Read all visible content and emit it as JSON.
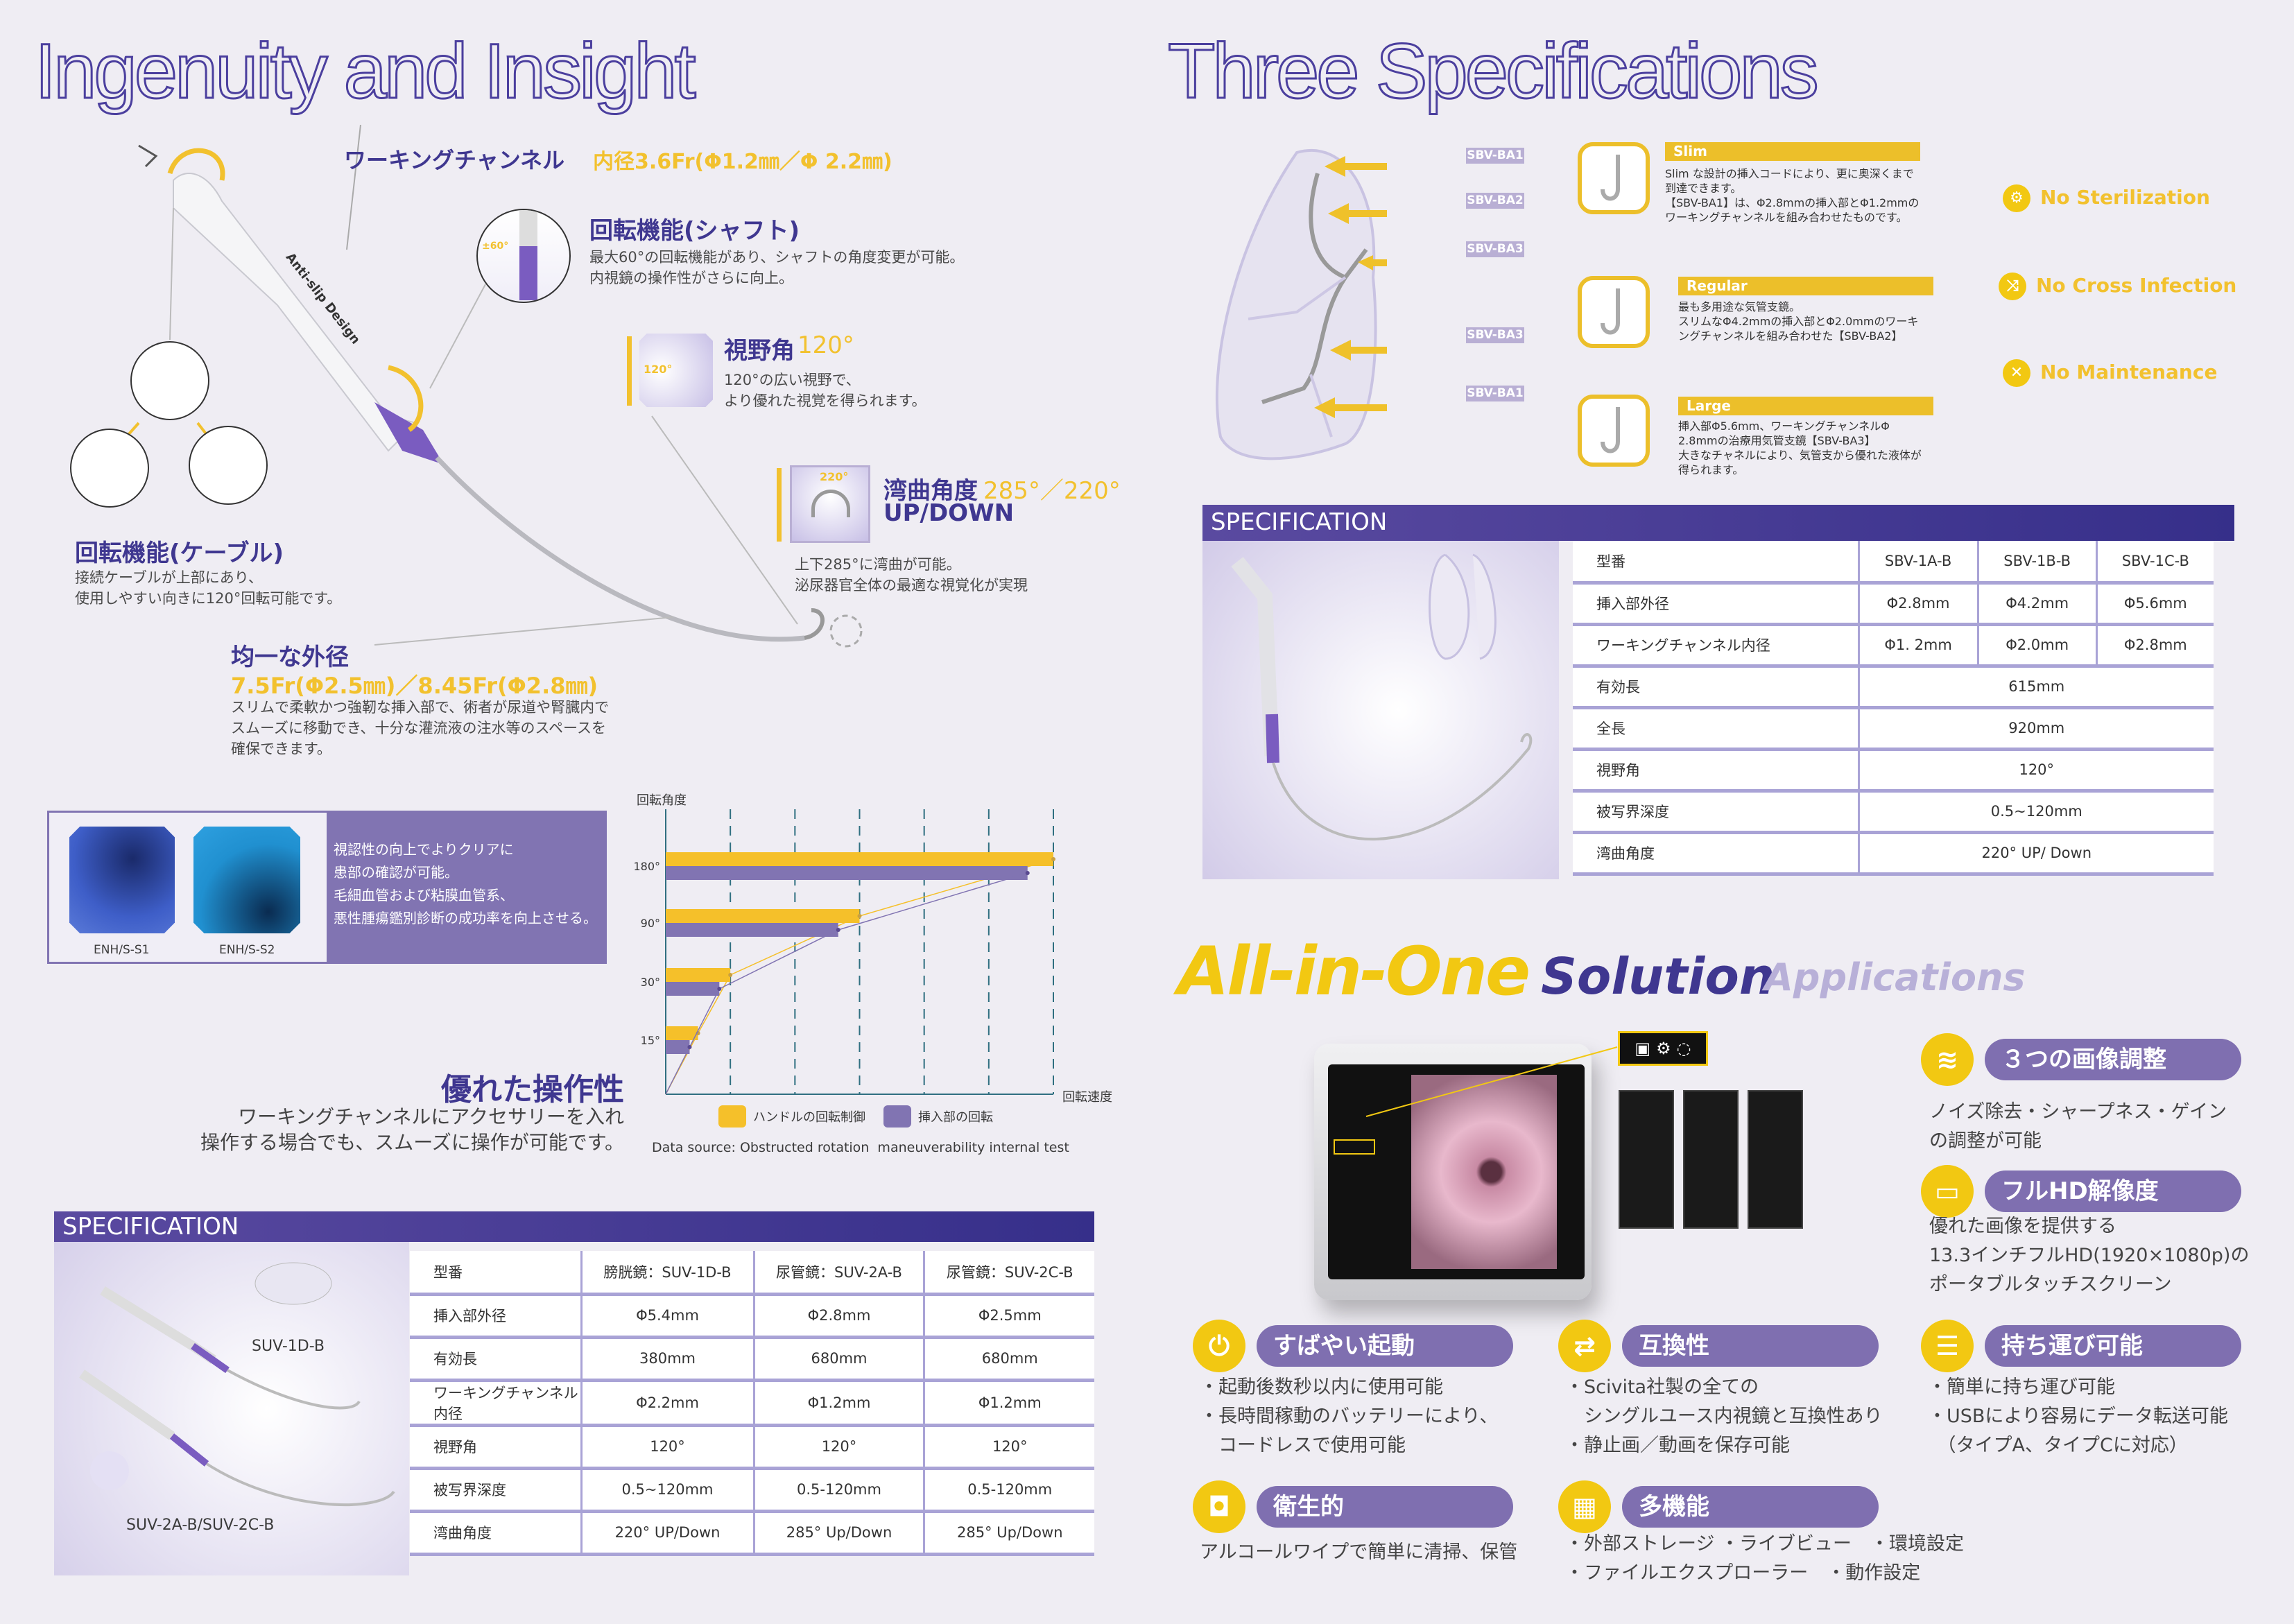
{
  "left": {
    "title": "Ingenuity and Insight",
    "working_channel": {
      "label": "ワーキングチャンネル",
      "value": "内径3.6Fr(Φ1.2㎜／Φ 2.2㎜)"
    },
    "shaft_rotation": {
      "title": "回転機能(シャフト)",
      "badge": "±60°",
      "lines": [
        "最大60°の回転機能があり、シャフトの角度変更が可能。",
        "内視鏡の操作性がさらに向上。"
      ]
    },
    "view_angle": {
      "title": "視野角",
      "value": "120°",
      "badge": "120°",
      "lines": [
        "120°の広い視野で、",
        "より優れた視覚を得られます。"
      ]
    },
    "bending": {
      "title": "湾曲角度",
      "value": "285°／220°",
      "sub": "UP/DOWN",
      "badge": "220°",
      "lines": [
        "上下285°に湾曲が可能。",
        "泌尿器官全体の最適な視覚化が実現"
      ]
    },
    "anti_slip": "Anti-slip Design",
    "cable_rotation": {
      "title": "回転機能(ケーブル)",
      "lines": [
        "接続ケーブルが上部にあり、",
        "使用しやすい向きに120°回転可能です。"
      ]
    },
    "outer_diameter": {
      "title": "均一な外径",
      "value": "7.5Fr(Φ2.5㎜)／8.45Fr(Φ2.8㎜)",
      "lines": [
        "スリムで柔軟かつ強靭な挿入部で、術者が尿道や腎臓内で",
        "スムーズに移動でき、十分な灌流液の注水等のスペースを",
        "確保できます。"
      ]
    },
    "enh": {
      "images": [
        "ENH/S-S1",
        "ENH/S-S2"
      ],
      "lines": [
        "視認性の向上でよりクリアに",
        "患部の確認が可能。",
        "毛細血管および粘膜血管系、",
        "悪性腫瘍鑑別診断の成功率を向上させる。"
      ]
    },
    "operability": {
      "title": "優れた操作性",
      "lines": [
        "ワーキングチャンネルにアクセサリーを入れ",
        "操作する場合でも、スムーズに操作が可能です。"
      ]
    },
    "spec": {
      "header": "SPECIFICATION",
      "image_labels": [
        "SUV-1D-B",
        "SUV-2A-B/SUV-2C-B"
      ],
      "rows": [
        [
          "型番",
          "膀胱鏡：SUV-1D-B",
          "尿管鏡：SUV-2A-B",
          "尿管鏡：SUV-2C-B"
        ],
        [
          "挿入部外径",
          "Φ5.4mm",
          "Φ2.8mm",
          "Φ2.5mm"
        ],
        [
          "有効長",
          "380mm",
          "680mm",
          "680mm"
        ],
        [
          "ワーキングチャンネル内径",
          "Φ2.2mm",
          "Φ1.2mm",
          "Φ1.2mm"
        ],
        [
          "視野角",
          "120°",
          "120°",
          "120°"
        ],
        [
          "被写界深度",
          "0.5~120mm",
          "0.5-120mm",
          "0.5-120mm"
        ],
        [
          "湾曲角度",
          "220° UP/Down",
          "285° Up/Down",
          "285° Up/Down"
        ]
      ]
    }
  },
  "chart_data": {
    "type": "bar",
    "orientation": "horizontal",
    "ylabel": "回転角度",
    "xlabel": "回転速度",
    "categories": [
      "180°",
      "90°",
      "30°",
      "15°"
    ],
    "series": [
      {
        "name": "ハンドルの回転制御",
        "values": [
          6.0,
          3.0,
          1.0,
          0.5
        ],
        "color": "#f5c02a"
      },
      {
        "name": "挿入部の回転",
        "values": [
          5.6,
          2.67,
          0.83,
          0.37
        ],
        "color": "#8174b2"
      }
    ],
    "xlim": [
      0,
      6
    ],
    "grid": "vertical dashed",
    "trend_lines": true,
    "legend": "bottom",
    "source": "Data source: Obstructed rotation  maneuverability internal test"
  },
  "right": {
    "title": "Three Specifications",
    "lung_labels": [
      "SBV-BA1",
      "SBV-BA2",
      "SBV-BA3",
      "SBV-BA3",
      "SBV-BA1"
    ],
    "types": [
      {
        "name": "Slim",
        "lines": [
          "Slim な設計の挿入コードにより、更に奥深くまで",
          "到達できます。",
          "【SBV-BA1】は、Φ2.8mmの挿入部とΦ1.2mmの",
          "ワーキングチャンネルを組み合わせたものです。"
        ]
      },
      {
        "name": "Regular",
        "lines": [
          "最も多用途な気管支鏡。",
          "スリムなΦ4.2mmの挿入部とΦ2.0mmのワーキ",
          "ングチャンネルを組み合わせた【SBV-BA2】"
        ]
      },
      {
        "name": "Large",
        "lines": [
          "挿入部Φ5.6mm、ワーキングチャンネルΦ",
          "2.8mmの治療用気管支鏡【SBV-BA3】",
          "大きなチャネルにより、気管支から優れた液体が",
          "得られます。"
        ]
      }
    ],
    "features": [
      "No Sterilization",
      "No Cross Infection",
      "No Maintenance"
    ],
    "spec": {
      "header": "SPECIFICATION",
      "rows": [
        [
          "型番",
          "SBV-1A-B",
          "SBV-1B-B",
          "SBV-1C-B"
        ],
        [
          "挿入部外径",
          "Φ2.8mm",
          "Φ4.2mm",
          "Φ5.6mm"
        ],
        [
          "ワーキングチャンネル内径",
          "Φ1. 2mm",
          "Φ2.0mm",
          "Φ2.8mm"
        ],
        [
          "有効長",
          "615mm"
        ],
        [
          "全長",
          "920mm"
        ],
        [
          "視野角",
          "120°"
        ],
        [
          "被写界深度",
          "0.5~120mm"
        ],
        [
          "湾曲角度",
          "220° UP/ Down"
        ]
      ]
    }
  },
  "aio": {
    "title1": "All-in-One",
    "title2": "Solution",
    "title3": "Applications",
    "features": [
      {
        "icon": "image-adjust-icon",
        "title": "３つの画像調整",
        "lines": [
          "ノイズ除去・シャープネス・ゲイン",
          "の調整が可能"
        ]
      },
      {
        "icon": "screen-icon",
        "title": "フルHD解像度",
        "lines": [
          "優れた画像を提供する",
          "13.3インチフルHD(1920×1080p)の",
          "ポータブルタッチスクリーン"
        ]
      },
      {
        "icon": "power-icon",
        "title": "すばやい起動",
        "lines": [
          "・起動後数秒以内に使用可能",
          "・長時間稼動のバッテリーにより、",
          "　コードレスで使用可能"
        ]
      },
      {
        "icon": "swap-icon",
        "title": "互換性",
        "lines": [
          "・Scivita社製の全ての",
          "　シングルユース内視鏡と互換性あり",
          "・静止画／動画を保存可能"
        ]
      },
      {
        "icon": "list-icon",
        "title": "持ち運び可能",
        "lines": [
          "・簡単に持ち運び可能",
          "・USBにより容易にデータ転送可能",
          "　（タイプA、タイプCに対応）"
        ]
      },
      {
        "icon": "hygiene-icon",
        "title": "衛生的",
        "lines": [
          "アルコールワイプで簡単に清掃、保管"
        ]
      },
      {
        "icon": "grid-icon",
        "title": "多機能",
        "lines": [
          "・外部ストレージ ・ライブビュー　・環境設定",
          "・ファイルエクスプローラー　・動作設定"
        ]
      }
    ]
  }
}
